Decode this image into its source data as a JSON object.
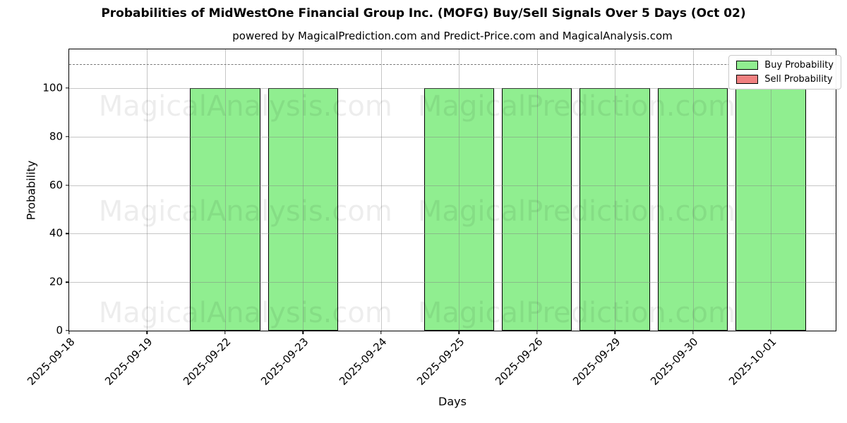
{
  "figure": {
    "title": "Probabilities of MidWestOne Financial Group Inc. (MOFG) Buy/Sell Signals Over 5 Days (Oct 02)",
    "subtitle": "powered by MagicalPrediction.com and Predict-Price.com and MagicalAnalysis.com"
  },
  "chart_data": {
    "type": "bar",
    "title": "Probabilities of MidWestOne Financial Group Inc. (MOFG) Buy/Sell Signals Over 5 Days (Oct 02)",
    "subtitle": "powered by MagicalPrediction.com and Predict-Price.com and MagicalAnalysis.com",
    "xlabel": "Days",
    "ylabel": "Probability",
    "categories": [
      "2025-09-18",
      "2025-09-19",
      "2025-09-22",
      "2025-09-23",
      "2025-09-24",
      "2025-09-25",
      "2025-09-26",
      "2025-09-29",
      "2025-09-30",
      "2025-10-01"
    ],
    "series": [
      {
        "name": "Buy Probability",
        "color": "#90ee90",
        "values": [
          0,
          0,
          100,
          100,
          0,
          100,
          100,
          100,
          100,
          100
        ]
      },
      {
        "name": "Sell Probability",
        "color": "#f08080",
        "values": [
          0,
          0,
          0,
          0,
          0,
          0,
          0,
          0,
          0,
          0
        ]
      }
    ],
    "ylim": [
      0,
      116
    ],
    "yticks": [
      0,
      20,
      40,
      60,
      80,
      100
    ],
    "xtick_rotation": 45,
    "grid": true,
    "legend_position": "upper-right",
    "threshold_line": {
      "value": 110,
      "style": "dashed",
      "color": "#7a7a7a"
    },
    "bar_width_fraction": 0.9,
    "watermarks": [
      "MagicalAnalysis.com",
      "MagicalPrediction.com"
    ]
  }
}
